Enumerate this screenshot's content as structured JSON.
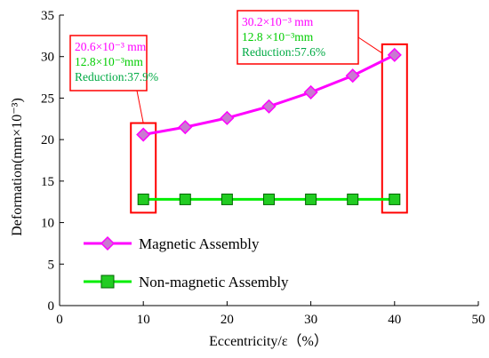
{
  "chart_data": {
    "type": "line",
    "xlabel": "Eccentricity/ε（%）",
    "ylabel": "Deformation(mm×10⁻³)",
    "xlim": [
      0,
      50
    ],
    "ylim": [
      0,
      35
    ],
    "xticks": [
      0,
      10,
      20,
      30,
      40,
      50
    ],
    "yticks": [
      0,
      5,
      10,
      15,
      20,
      25,
      30,
      35
    ],
    "grid": false,
    "legend_position": "bottom-left",
    "series": [
      {
        "name": "Magnetic Assembly",
        "color": "#ff00ff",
        "marker": "diamond",
        "marker_fill": "#c87ad0",
        "x": [
          10,
          15,
          20,
          25,
          30,
          35,
          40
        ],
        "y": [
          20.6,
          21.5,
          22.6,
          24.0,
          25.7,
          27.7,
          30.2
        ]
      },
      {
        "name": "Non-magnetic Assembly",
        "color": "#00ee00",
        "marker": "square",
        "marker_fill": "#22cc22",
        "x": [
          10,
          15,
          20,
          25,
          30,
          35,
          40
        ],
        "y": [
          12.8,
          12.8,
          12.8,
          12.8,
          12.8,
          12.8,
          12.8
        ]
      }
    ],
    "annotations": [
      {
        "at_x": 10,
        "lines": [
          {
            "text": "20.6×10⁻³ mm",
            "color": "#ff00ff"
          },
          {
            "text": "12.8×10⁻³mm",
            "color": "#00cc00"
          },
          {
            "text": "Reduction:37.9%",
            "color": "#00aa44"
          }
        ]
      },
      {
        "at_x": 40,
        "lines": [
          {
            "text": "30.2×10⁻³ mm",
            "color": "#ff00ff"
          },
          {
            "text": "12.8 ×10⁻³mm",
            "color": "#00cc00"
          },
          {
            "text": "Reduction:57.6%",
            "color": "#00aa44"
          }
        ]
      }
    ],
    "highlight_color": "#ff0000"
  }
}
